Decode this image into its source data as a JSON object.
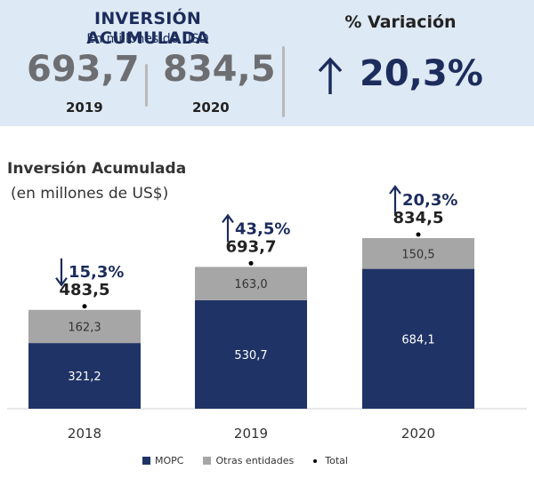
{
  "kpi": {
    "title": "INVERSIÓN ACUMULADA",
    "subtitle": "En millones de USD",
    "items": [
      {
        "value": "693,7",
        "year": "2019"
      },
      {
        "value": "834,5",
        "year": "2020"
      }
    ],
    "variation_title": "% Variación",
    "variation_value": "20,3%"
  },
  "chart_data": {
    "type": "bar",
    "stacked": true,
    "title": "Inversión Acumulada",
    "subtitle": "(en millones de US$)",
    "categories": [
      "2018",
      "2019",
      "2020"
    ],
    "series": [
      {
        "name": "MOPC",
        "values": [
          321.2,
          530.7,
          684.1
        ],
        "labels": [
          "321,2",
          "530,7",
          "684,1"
        ],
        "color": "#1f3366"
      },
      {
        "name": "Otras entidades",
        "values": [
          162.3,
          163.0,
          150.5
        ],
        "labels": [
          "162,3",
          "163,0",
          "150,5"
        ],
        "color": "#a6a6a6"
      }
    ],
    "totals": {
      "name": "Total",
      "values": [
        483.5,
        693.7,
        834.5
      ],
      "labels": [
        "483,5",
        "693,7",
        "834,5"
      ]
    },
    "changes": [
      {
        "direction": "down",
        "label": "15,3%"
      },
      {
        "direction": "up",
        "label": "43,5%"
      },
      {
        "direction": "up",
        "label": "20,3%"
      }
    ],
    "ylim": [
      0,
      834.5
    ],
    "grid": false,
    "legend_position": "bottom",
    "colors": {
      "label_dark": "#1c2c5c",
      "arrow": "#1c2c5c",
      "bar_text_light": "#ffffff",
      "bar_text_dark": "#333333"
    }
  }
}
